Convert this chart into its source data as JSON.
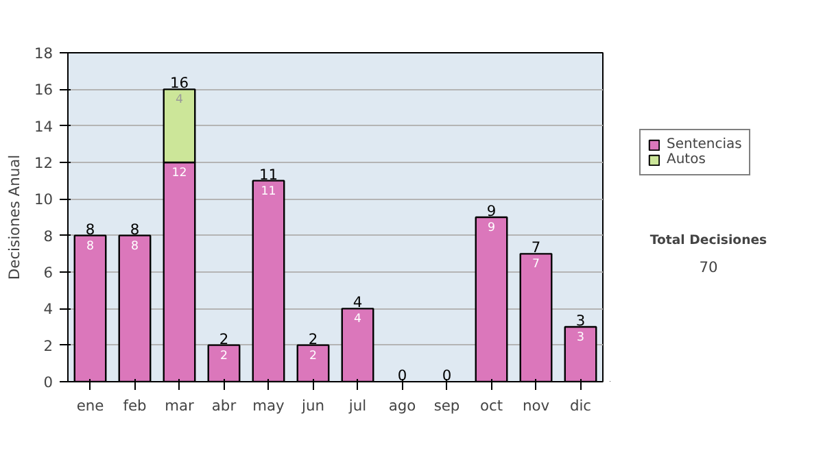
{
  "chart_data": {
    "type": "bar",
    "stacked": true,
    "ylabel": "Decisiones Anual",
    "categories": [
      "ene",
      "feb",
      "mar",
      "abr",
      "may",
      "jun",
      "jul",
      "ago",
      "sep",
      "oct",
      "nov",
      "dic"
    ],
    "series": [
      {
        "name": "Sentencias",
        "color": "#db77bb",
        "values": [
          8,
          8,
          12,
          2,
          11,
          2,
          4,
          0,
          0,
          9,
          7,
          3
        ],
        "value_labels": [
          "8",
          "8",
          "12",
          "2",
          "11",
          "2",
          "4",
          null,
          null,
          "9",
          "7",
          "3"
        ]
      },
      {
        "name": "Autos",
        "color": "#cce699",
        "values": [
          0,
          0,
          4,
          0,
          0,
          0,
          0,
          0,
          0,
          0,
          0,
          0
        ],
        "value_labels": [
          null,
          null,
          "4",
          null,
          null,
          null,
          null,
          null,
          null,
          null,
          null,
          null
        ]
      }
    ],
    "totals": [
      "8",
      "8",
      "16",
      "2",
      "11",
      "2",
      "4",
      "0",
      "0",
      "9",
      "7",
      "3"
    ],
    "ylim": [
      0,
      18
    ],
    "yticks": [
      0,
      2,
      4,
      6,
      8,
      10,
      12,
      14,
      16,
      18
    ],
    "grid": "y",
    "legend": "right",
    "annotations": [
      "Total Decisiones",
      "70"
    ]
  }
}
